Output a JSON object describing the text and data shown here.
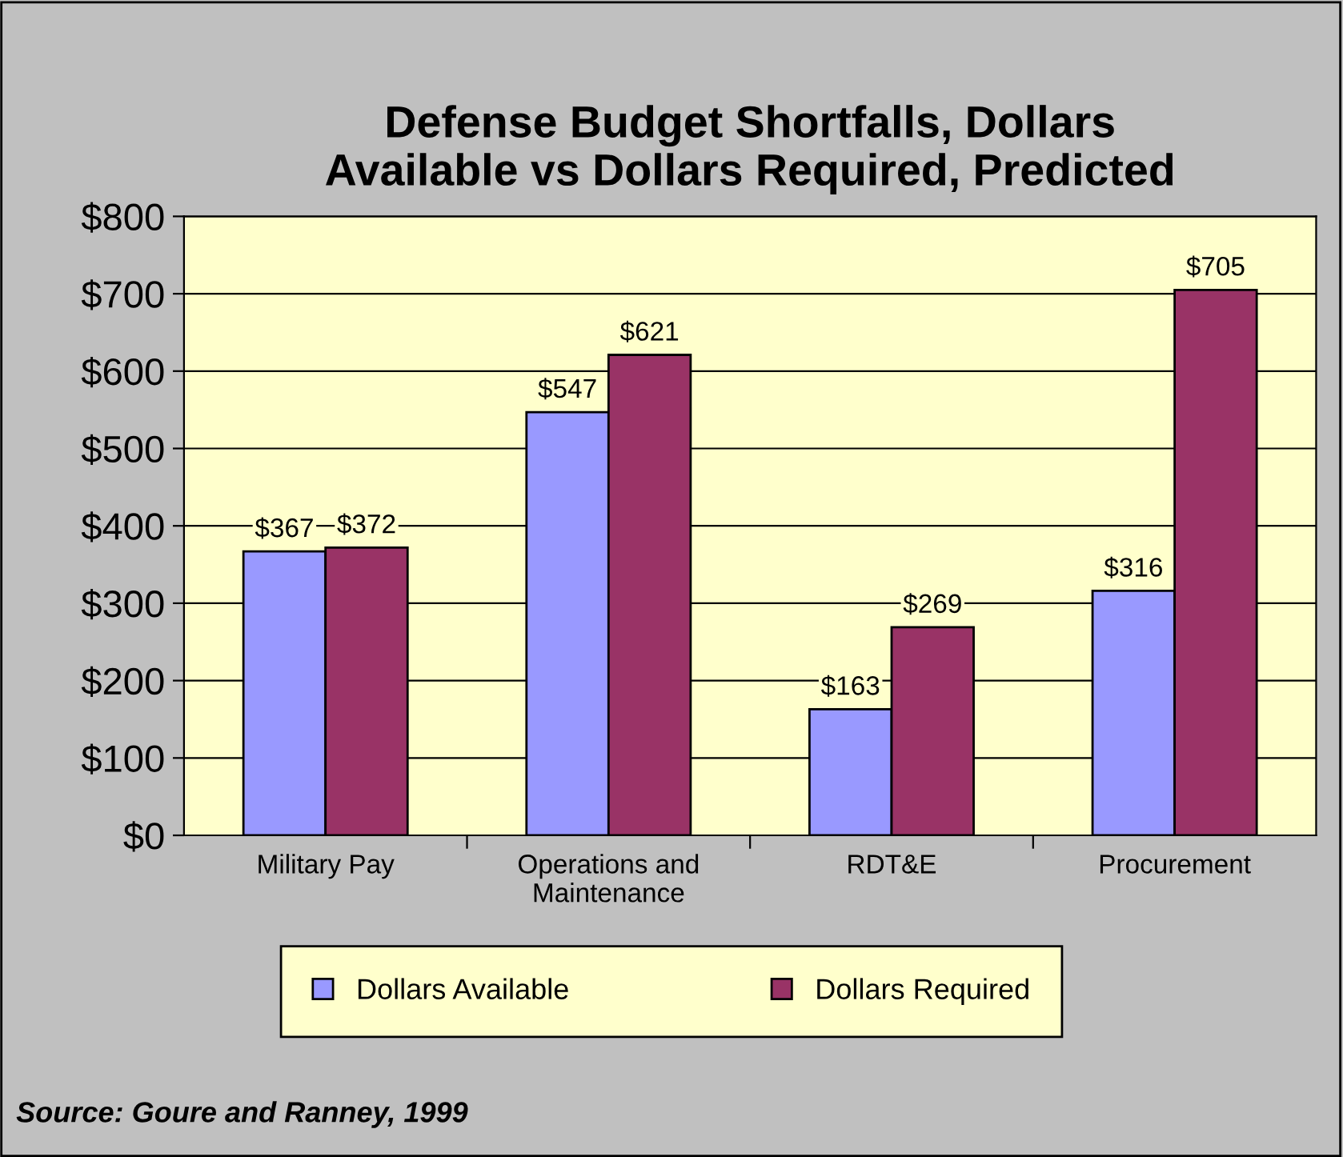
{
  "chart_data": {
    "type": "bar",
    "title": "Defense Budget Shortfalls, Dollars\nAvailable vs Dollars Required, Predicted",
    "categories": [
      "Military Pay",
      "Operations and\nMaintenance",
      "RDT&E",
      "Procurement"
    ],
    "series": [
      {
        "name": "Dollars Available",
        "color": "#9999ff",
        "values": [
          367,
          547,
          163,
          316
        ],
        "value_labels": [
          "$367",
          "$547",
          "$163",
          "$316"
        ]
      },
      {
        "name": "Dollars Required",
        "color": "#993366",
        "values": [
          372,
          621,
          269,
          705
        ],
        "value_labels": [
          "$372",
          "$621",
          "$269",
          "$705"
        ]
      }
    ],
    "ylim": [
      0,
      800
    ],
    "yticks": [
      {
        "value": 0,
        "label": "$0"
      },
      {
        "value": 100,
        "label": "$100"
      },
      {
        "value": 200,
        "label": "$200"
      },
      {
        "value": 300,
        "label": "$300"
      },
      {
        "value": 400,
        "label": "$400"
      },
      {
        "value": 500,
        "label": "$500"
      },
      {
        "value": 600,
        "label": "$600"
      },
      {
        "value": 700,
        "label": "$700"
      },
      {
        "value": 800,
        "label": "$800"
      }
    ],
    "grid": "y",
    "legend": "bottom",
    "annotations": [
      "Source: Goure and Ranney, 1999"
    ]
  }
}
